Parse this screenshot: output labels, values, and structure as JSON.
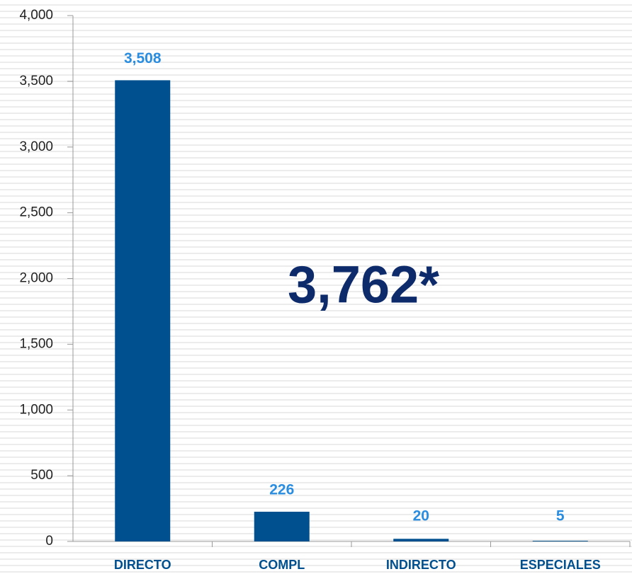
{
  "chart_data": {
    "type": "bar",
    "categories": [
      "DIRECTO",
      "COMPL",
      "INDIRECTO",
      "ESPECIALES"
    ],
    "values": [
      3508,
      226,
      20,
      5
    ],
    "value_labels": [
      "3,508",
      "226",
      "20",
      "5"
    ],
    "color": "#00508f",
    "ylim": [
      0,
      4000
    ],
    "yticks": [
      0,
      500,
      {
        "value": 1000,
        "label": "1,000"
      },
      {
        "value": 1500,
        "label": "1,500"
      },
      {
        "value": 2000,
        "label": "2,000"
      },
      {
        "value": 2500,
        "label": "2,500"
      },
      {
        "value": 3000,
        "label": "3,000"
      },
      {
        "value": 3500,
        "label": "3,500"
      },
      {
        "value": 4000,
        "label": "4,000"
      }
    ],
    "annotation": "3,762*"
  }
}
